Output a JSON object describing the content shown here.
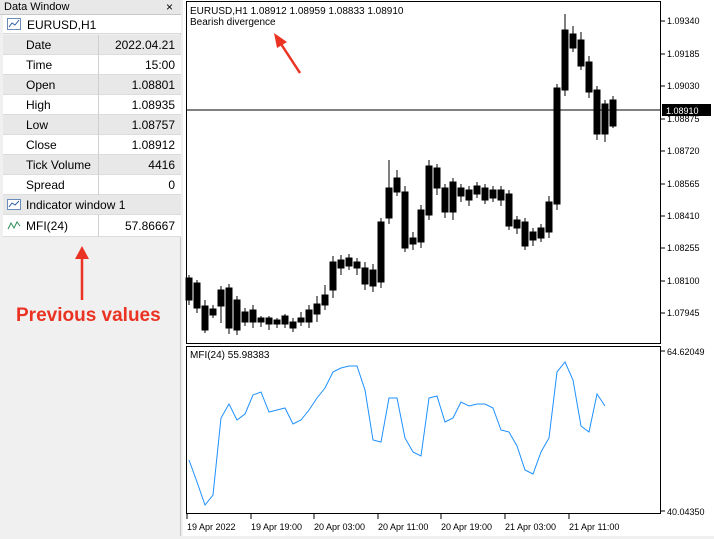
{
  "data_window": {
    "title": "Data Window",
    "close_glyph": "×",
    "symbol": "EURUSD,H1",
    "rows": [
      {
        "label": "Date",
        "value": "2022.04.21"
      },
      {
        "label": "Time",
        "value": "15:00"
      },
      {
        "label": "Open",
        "value": "1.08801"
      },
      {
        "label": "High",
        "value": "1.08935"
      },
      {
        "label": "Low",
        "value": "1.08757"
      },
      {
        "label": "Close",
        "value": "1.08912"
      },
      {
        "label": "Tick Volume",
        "value": "4416"
      },
      {
        "label": "Spread",
        "value": "0"
      }
    ],
    "indicator_window": "Indicator window 1",
    "mfi_label": "MFI(24)",
    "mfi_value": "57.86667"
  },
  "annotations": {
    "previous_values": "Previous values",
    "bearish_divergence": "Bearish divergence",
    "arrow_color": "#ea3323"
  },
  "main_chart": {
    "info": "EURUSD,H1  1.08912 1.08959 1.08833 1.08910",
    "price_ticks": [
      "1.09340",
      "1.09185",
      "1.09030",
      "1.08875",
      "1.08720",
      "1.08565",
      "1.08410",
      "1.08255",
      "1.08100",
      "1.07945"
    ],
    "current_price": "1.08910"
  },
  "mfi_chart": {
    "info": "MFI(24) 55.98383",
    "max_label": "64.62049",
    "min_label": "40.04350",
    "line_color": "#1e90ff"
  },
  "time_axis": [
    "19 Apr 2022",
    "19 Apr 19:00",
    "20 Apr 03:00",
    "20 Apr 11:00",
    "20 Apr 19:00",
    "21 Apr 03:00",
    "21 Apr 11:00"
  ]
}
